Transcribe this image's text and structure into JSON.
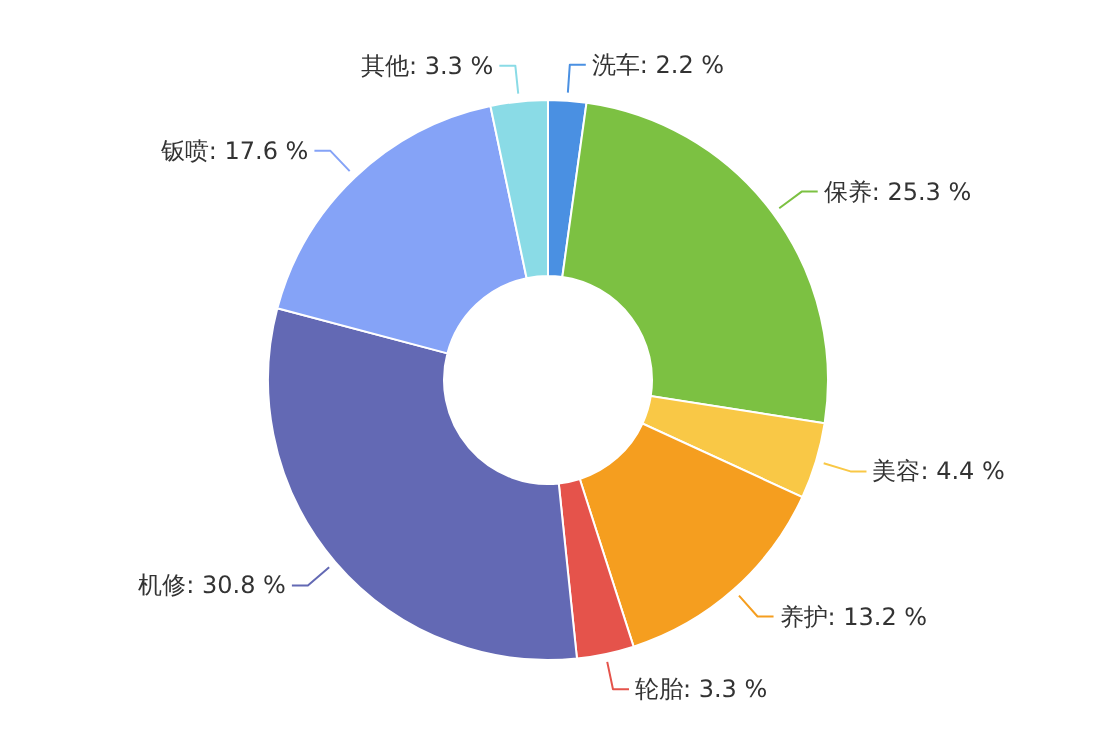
{
  "chart_data": {
    "type": "donut",
    "categories": [
      "洗车",
      "保养",
      "美容",
      "养护",
      "轮胎",
      "机修",
      "钣喷",
      "其他"
    ],
    "values": [
      2.2,
      25.3,
      4.4,
      13.2,
      3.3,
      30.8,
      17.6,
      3.3
    ],
    "colors": [
      "#4a90e2",
      "#7cc142",
      "#f9c846",
      "#f59e1f",
      "#e5534b",
      "#6369b4",
      "#85a3f7",
      "#8adbe6"
    ],
    "value_labels": [
      "2.2 %",
      "25.3 %",
      "4.4 %",
      "13.2 %",
      "3.3 %",
      "30.8 %",
      "17.6 %",
      "3.3 %"
    ],
    "legend": false
  }
}
